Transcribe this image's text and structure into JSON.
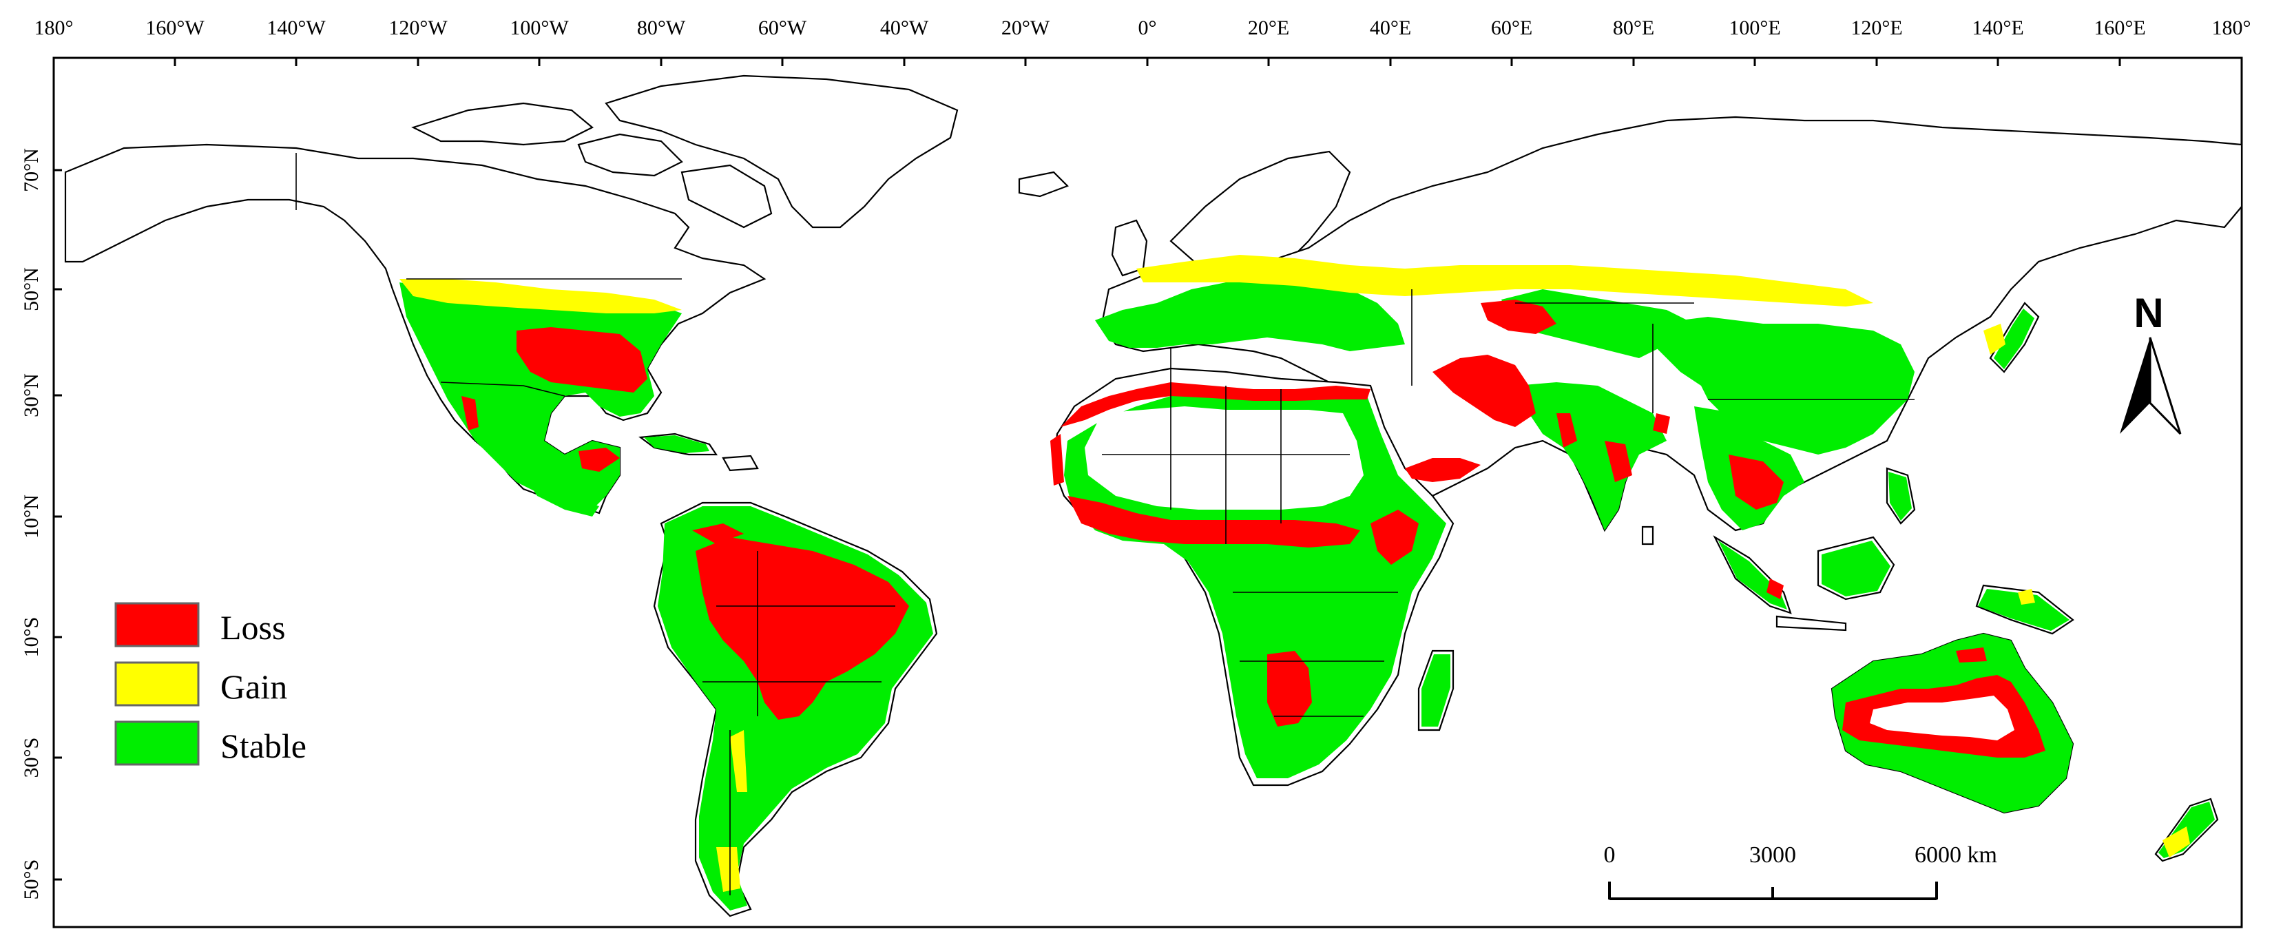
{
  "map": {
    "top_longitude_labels": [
      "180°",
      "160°W",
      "140°W",
      "120°W",
      "100°W",
      "80°W",
      "60°W",
      "40°W",
      "20°W",
      "0°",
      "20°E",
      "40°E",
      "60°E",
      "80°E",
      "100°E",
      "120°E",
      "140°E",
      "160°E",
      "180°"
    ],
    "left_latitude_labels": [
      "70°N",
      "50°N",
      "30°N",
      "10°N",
      "10°S",
      "30°S",
      "50°S"
    ]
  },
  "legend": {
    "items": [
      {
        "label": "Loss",
        "color": "#ff0000"
      },
      {
        "label": "Gain",
        "color": "#ffff00"
      },
      {
        "label": "Stable",
        "color": "#00ee00"
      }
    ]
  },
  "scale_bar": {
    "labels": [
      "0",
      "3000",
      "6000 km"
    ]
  },
  "north_arrow": {
    "label": "N"
  },
  "colors": {
    "loss": "#ff0000",
    "gain": "#ffff00",
    "stable": "#00ee00",
    "land": "#ffffff",
    "outline": "#000000"
  }
}
